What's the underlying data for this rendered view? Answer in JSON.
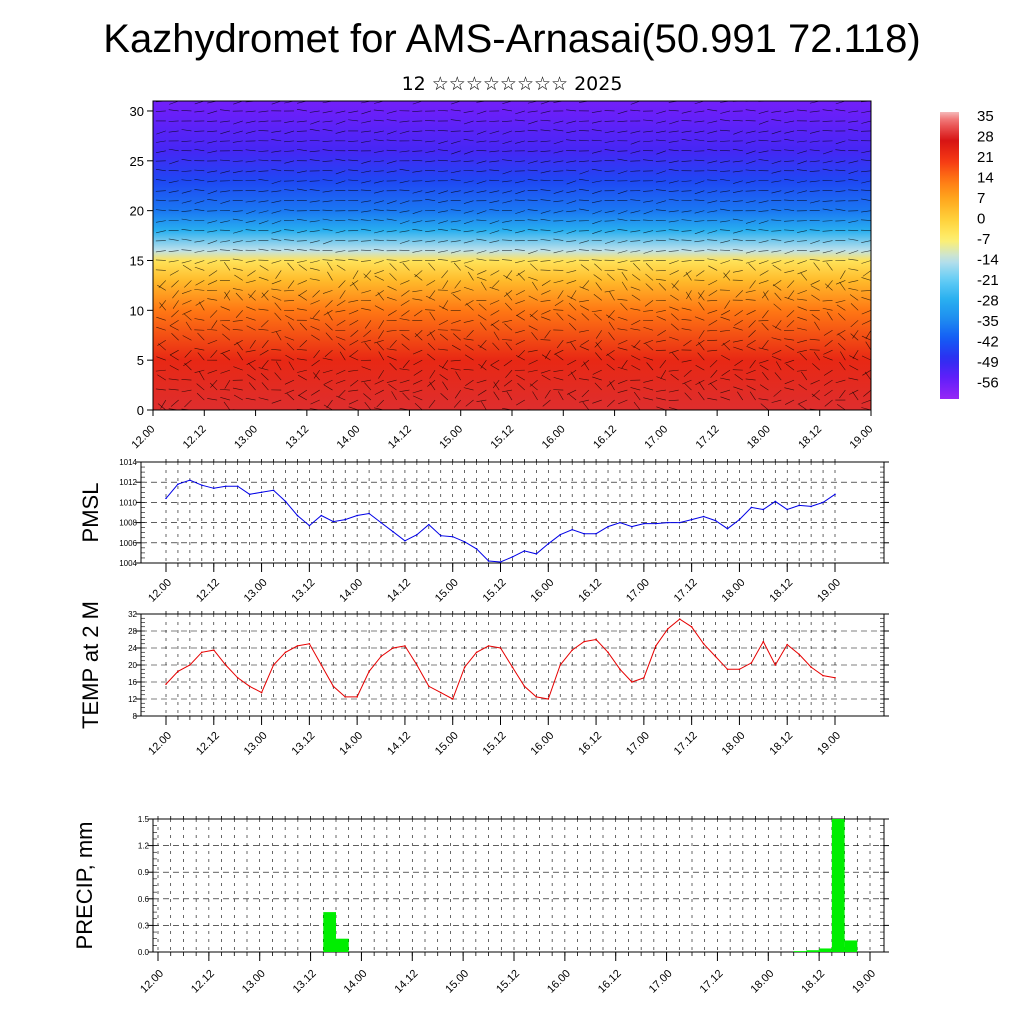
{
  "title": "Kazhydromet for AMS-Arnasai(50.991 72.118)",
  "subtitle": "12 ☆☆☆☆☆☆☆☆ 2025",
  "time_ticks": [
    "12.00",
    "12.12",
    "13.00",
    "13.12",
    "14.00",
    "14.12",
    "15.00",
    "15.12",
    "16.00",
    "16.12",
    "17.00",
    "17.12",
    "18.00",
    "18.12",
    "19.00"
  ],
  "colors": {
    "pmsl_line": "#0000e6",
    "temp_line": "#e60000",
    "precip_bar": "#00ee00"
  },
  "chart_data": [
    {
      "type": "heatmap",
      "id": "upper-air",
      "ylim": [
        0,
        31
      ],
      "y_ticks": [
        "0",
        "5",
        "10",
        "15",
        "20",
        "25",
        "30"
      ],
      "x_ticks_ref": "time_ticks",
      "colorbar_labels": [
        "35",
        "28",
        "21",
        "14",
        "7",
        "0",
        "-7",
        "-14",
        "-21",
        "-28",
        "-35",
        "-42",
        "-49",
        "-56"
      ],
      "colorbar_range": [
        -63,
        38
      ],
      "note_overlay": "wind barbs",
      "temperature_profile": {
        "levels": [
          0,
          5,
          10,
          13,
          15,
          16,
          18,
          20,
          23,
          26,
          30,
          31
        ],
        "values": [
          30,
          24,
          14,
          4,
          -4,
          -14,
          -28,
          -38,
          -45,
          -52,
          -57,
          -58
        ]
      }
    },
    {
      "type": "line",
      "id": "pmsl",
      "ylabel": "PMSL",
      "ylim": [
        1004,
        1014
      ],
      "y_ticks": [
        "1004",
        "1006",
        "1008",
        "1010",
        "1012",
        "1014"
      ],
      "x": [
        0,
        3,
        6,
        9,
        12,
        15,
        18,
        21,
        24,
        27,
        30,
        33,
        36,
        39,
        42,
        45,
        48,
        51,
        54,
        57,
        60,
        63,
        66,
        69,
        72,
        75,
        78,
        81,
        84,
        87,
        90,
        93,
        96,
        99,
        102,
        105,
        108,
        111,
        114,
        117,
        120,
        123,
        126,
        129,
        132,
        135,
        138,
        141,
        144,
        147,
        150,
        153,
        156,
        159,
        162,
        165,
        168
      ],
      "values": [
        1010.4,
        1011.8,
        1012.2,
        1011.7,
        1011.4,
        1011.6,
        1011.6,
        1010.8,
        1011.0,
        1011.2,
        1010.1,
        1008.7,
        1007.7,
        1008.7,
        1008.1,
        1008.3,
        1008.7,
        1008.9,
        1008.0,
        1007.1,
        1006.2,
        1006.8,
        1007.8,
        1006.7,
        1006.6,
        1006.1,
        1005.4,
        1004.2,
        1004.1,
        1004.6,
        1005.2,
        1004.9,
        1005.9,
        1006.8,
        1007.3,
        1006.9,
        1006.9,
        1007.6,
        1008.0,
        1007.6,
        1007.9,
        1007.9,
        1008.0,
        1008.0,
        1008.3,
        1008.6,
        1008.2,
        1007.4,
        1008.3,
        1009.5,
        1009.3,
        1010.1,
        1009.3,
        1009.7,
        1009.6,
        1010.0,
        1010.8
      ]
    },
    {
      "type": "line",
      "id": "temp2m",
      "ylabel": "TEMP at 2 M",
      "ylim": [
        8,
        32
      ],
      "y_ticks": [
        "8",
        "12",
        "16",
        "20",
        "24",
        "28",
        "32"
      ],
      "x": [
        0,
        3,
        6,
        9,
        12,
        15,
        18,
        21,
        24,
        27,
        30,
        33,
        36,
        39,
        42,
        45,
        48,
        51,
        54,
        57,
        60,
        63,
        66,
        69,
        72,
        75,
        78,
        81,
        84,
        87,
        90,
        93,
        96,
        99,
        102,
        105,
        108,
        111,
        114,
        117,
        120,
        123,
        126,
        129,
        132,
        135,
        138,
        141,
        144,
        147,
        150,
        153,
        156,
        159,
        162,
        165,
        168
      ],
      "values": [
        15.5,
        18.5,
        20.0,
        23.0,
        23.5,
        20.0,
        17.0,
        15.0,
        13.5,
        20.0,
        23.0,
        24.5,
        25.0,
        20.0,
        15.0,
        12.5,
        12.5,
        18.5,
        22.0,
        24.0,
        24.5,
        20.0,
        15.0,
        13.5,
        12.0,
        19.5,
        23.0,
        24.5,
        24.0,
        19.5,
        15.0,
        12.5,
        12.0,
        20.0,
        23.5,
        25.5,
        26.0,
        23.0,
        19.0,
        16.0,
        17.0,
        24.5,
        28.5,
        30.8,
        29.0,
        25.0,
        22.0,
        19.0,
        19.0,
        20.5,
        25.5,
        20.0,
        24.8,
        22.5,
        19.5,
        17.5,
        17.0
      ]
    },
    {
      "type": "bar",
      "id": "precip",
      "ylabel": "PRECIP, mm",
      "ylim": [
        0,
        1.5
      ],
      "y_ticks": [
        "0.0",
        "0.3",
        "0.6",
        "0.9",
        "1.2",
        "1.5"
      ],
      "bars": [
        {
          "x": 39,
          "value": 0.45
        },
        {
          "x": 42,
          "value": 0.15
        },
        {
          "x": 150,
          "value": 0.01
        },
        {
          "x": 153,
          "value": 0.02
        },
        {
          "x": 156,
          "value": 0.04
        },
        {
          "x": 159,
          "value": 1.5
        },
        {
          "x": 162,
          "value": 0.13
        }
      ]
    }
  ]
}
